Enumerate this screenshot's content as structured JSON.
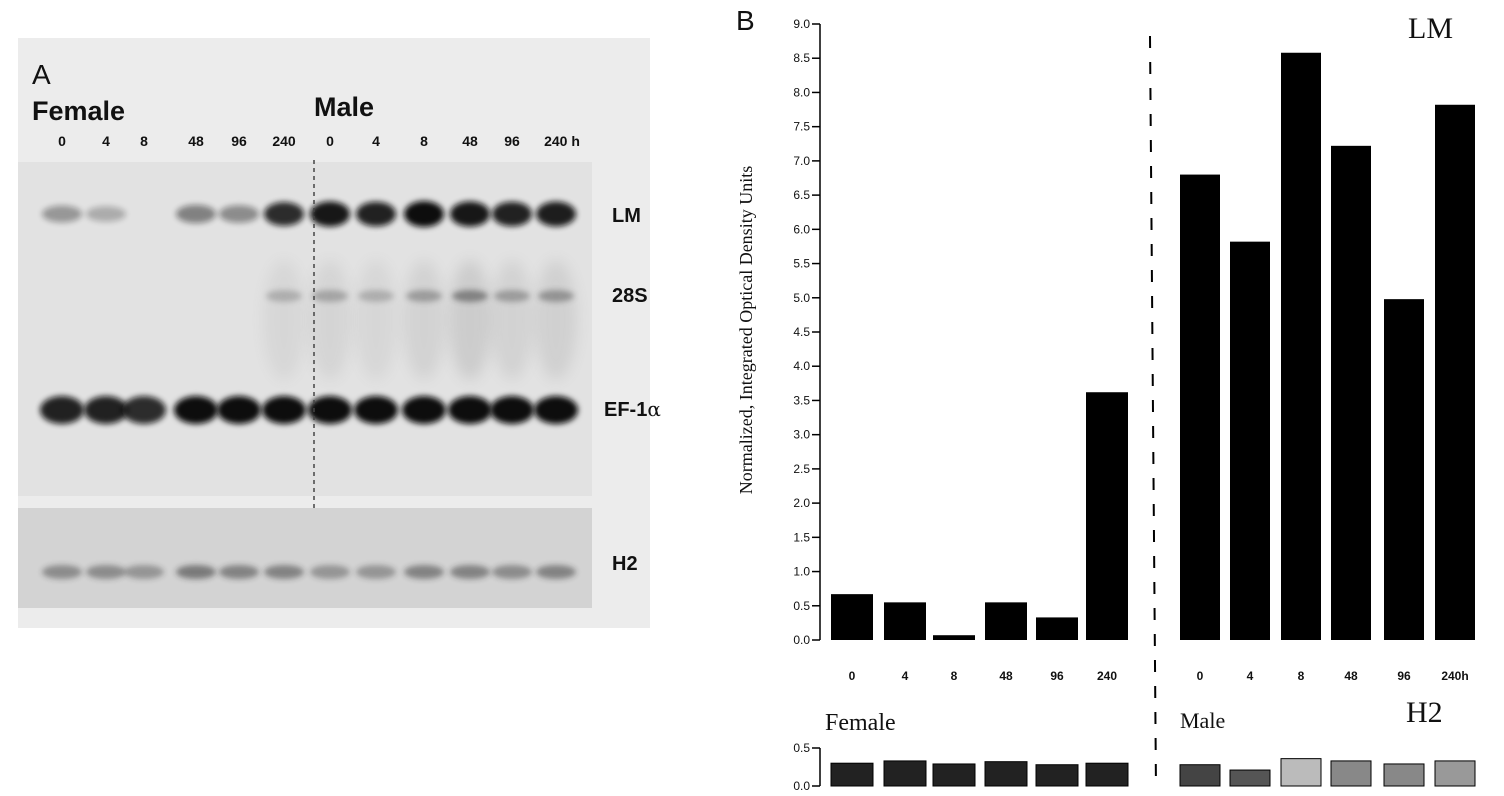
{
  "panel_a": {
    "label": "A",
    "female_title": "Female",
    "male_title": "Male",
    "lanes": [
      "0",
      "4",
      "8",
      "48",
      "96",
      "240",
      "0",
      "4",
      "8",
      "48",
      "96",
      "240 h"
    ],
    "band_labels": {
      "lm": "LM",
      "s28": "28S",
      "ef1": "EF-1",
      "ef1_symbol": "α",
      "h2": "H2"
    }
  },
  "panel_b": {
    "label": "B",
    "inset_labels": {
      "lm": "LM",
      "h2": "H2"
    },
    "group_labels": {
      "female": "Female",
      "male": "Male"
    }
  },
  "chart_data": [
    {
      "type": "bar",
      "ylabel": "Normalized, Integrated Optical Density Units",
      "ylim": [
        0,
        9.0
      ],
      "yticks": [
        "0.0",
        "0.5",
        "1.0",
        "1.5",
        "2.0",
        "2.5",
        "3.0",
        "3.5",
        "4.0",
        "4.5",
        "5.0",
        "5.5",
        "6.0",
        "6.5",
        "7.0",
        "7.5",
        "8.0",
        "8.5",
        "9.0"
      ],
      "categories": [
        "0",
        "4",
        "8",
        "48",
        "96",
        "240",
        "0",
        "4",
        "8",
        "48",
        "96",
        "240h"
      ],
      "groups": [
        "Female",
        "Female",
        "Female",
        "Female",
        "Female",
        "Female",
        "Male",
        "Male",
        "Male",
        "Male",
        "Male",
        "Male"
      ],
      "values": [
        0.67,
        0.55,
        0.07,
        0.55,
        0.33,
        3.62,
        6.8,
        5.82,
        8.58,
        7.22,
        4.98,
        7.82
      ],
      "color": "#000000"
    },
    {
      "type": "bar",
      "title": "H2",
      "ylim": [
        0,
        0.5
      ],
      "yticks": [
        "0.0",
        "0.5"
      ],
      "categories": [
        "0",
        "4",
        "8",
        "48",
        "96",
        "240",
        "0",
        "4",
        "8",
        "48",
        "96",
        "240h"
      ],
      "values": [
        0.3,
        0.33,
        0.29,
        0.32,
        0.28,
        0.3,
        0.28,
        0.21,
        0.36,
        0.33,
        0.29,
        0.33
      ],
      "colors": [
        "#222222",
        "#222222",
        "#222222",
        "#222222",
        "#222222",
        "#222222",
        "#444444",
        "#555555",
        "#bbbbbb",
        "#888888",
        "#888888",
        "#999999"
      ]
    }
  ]
}
